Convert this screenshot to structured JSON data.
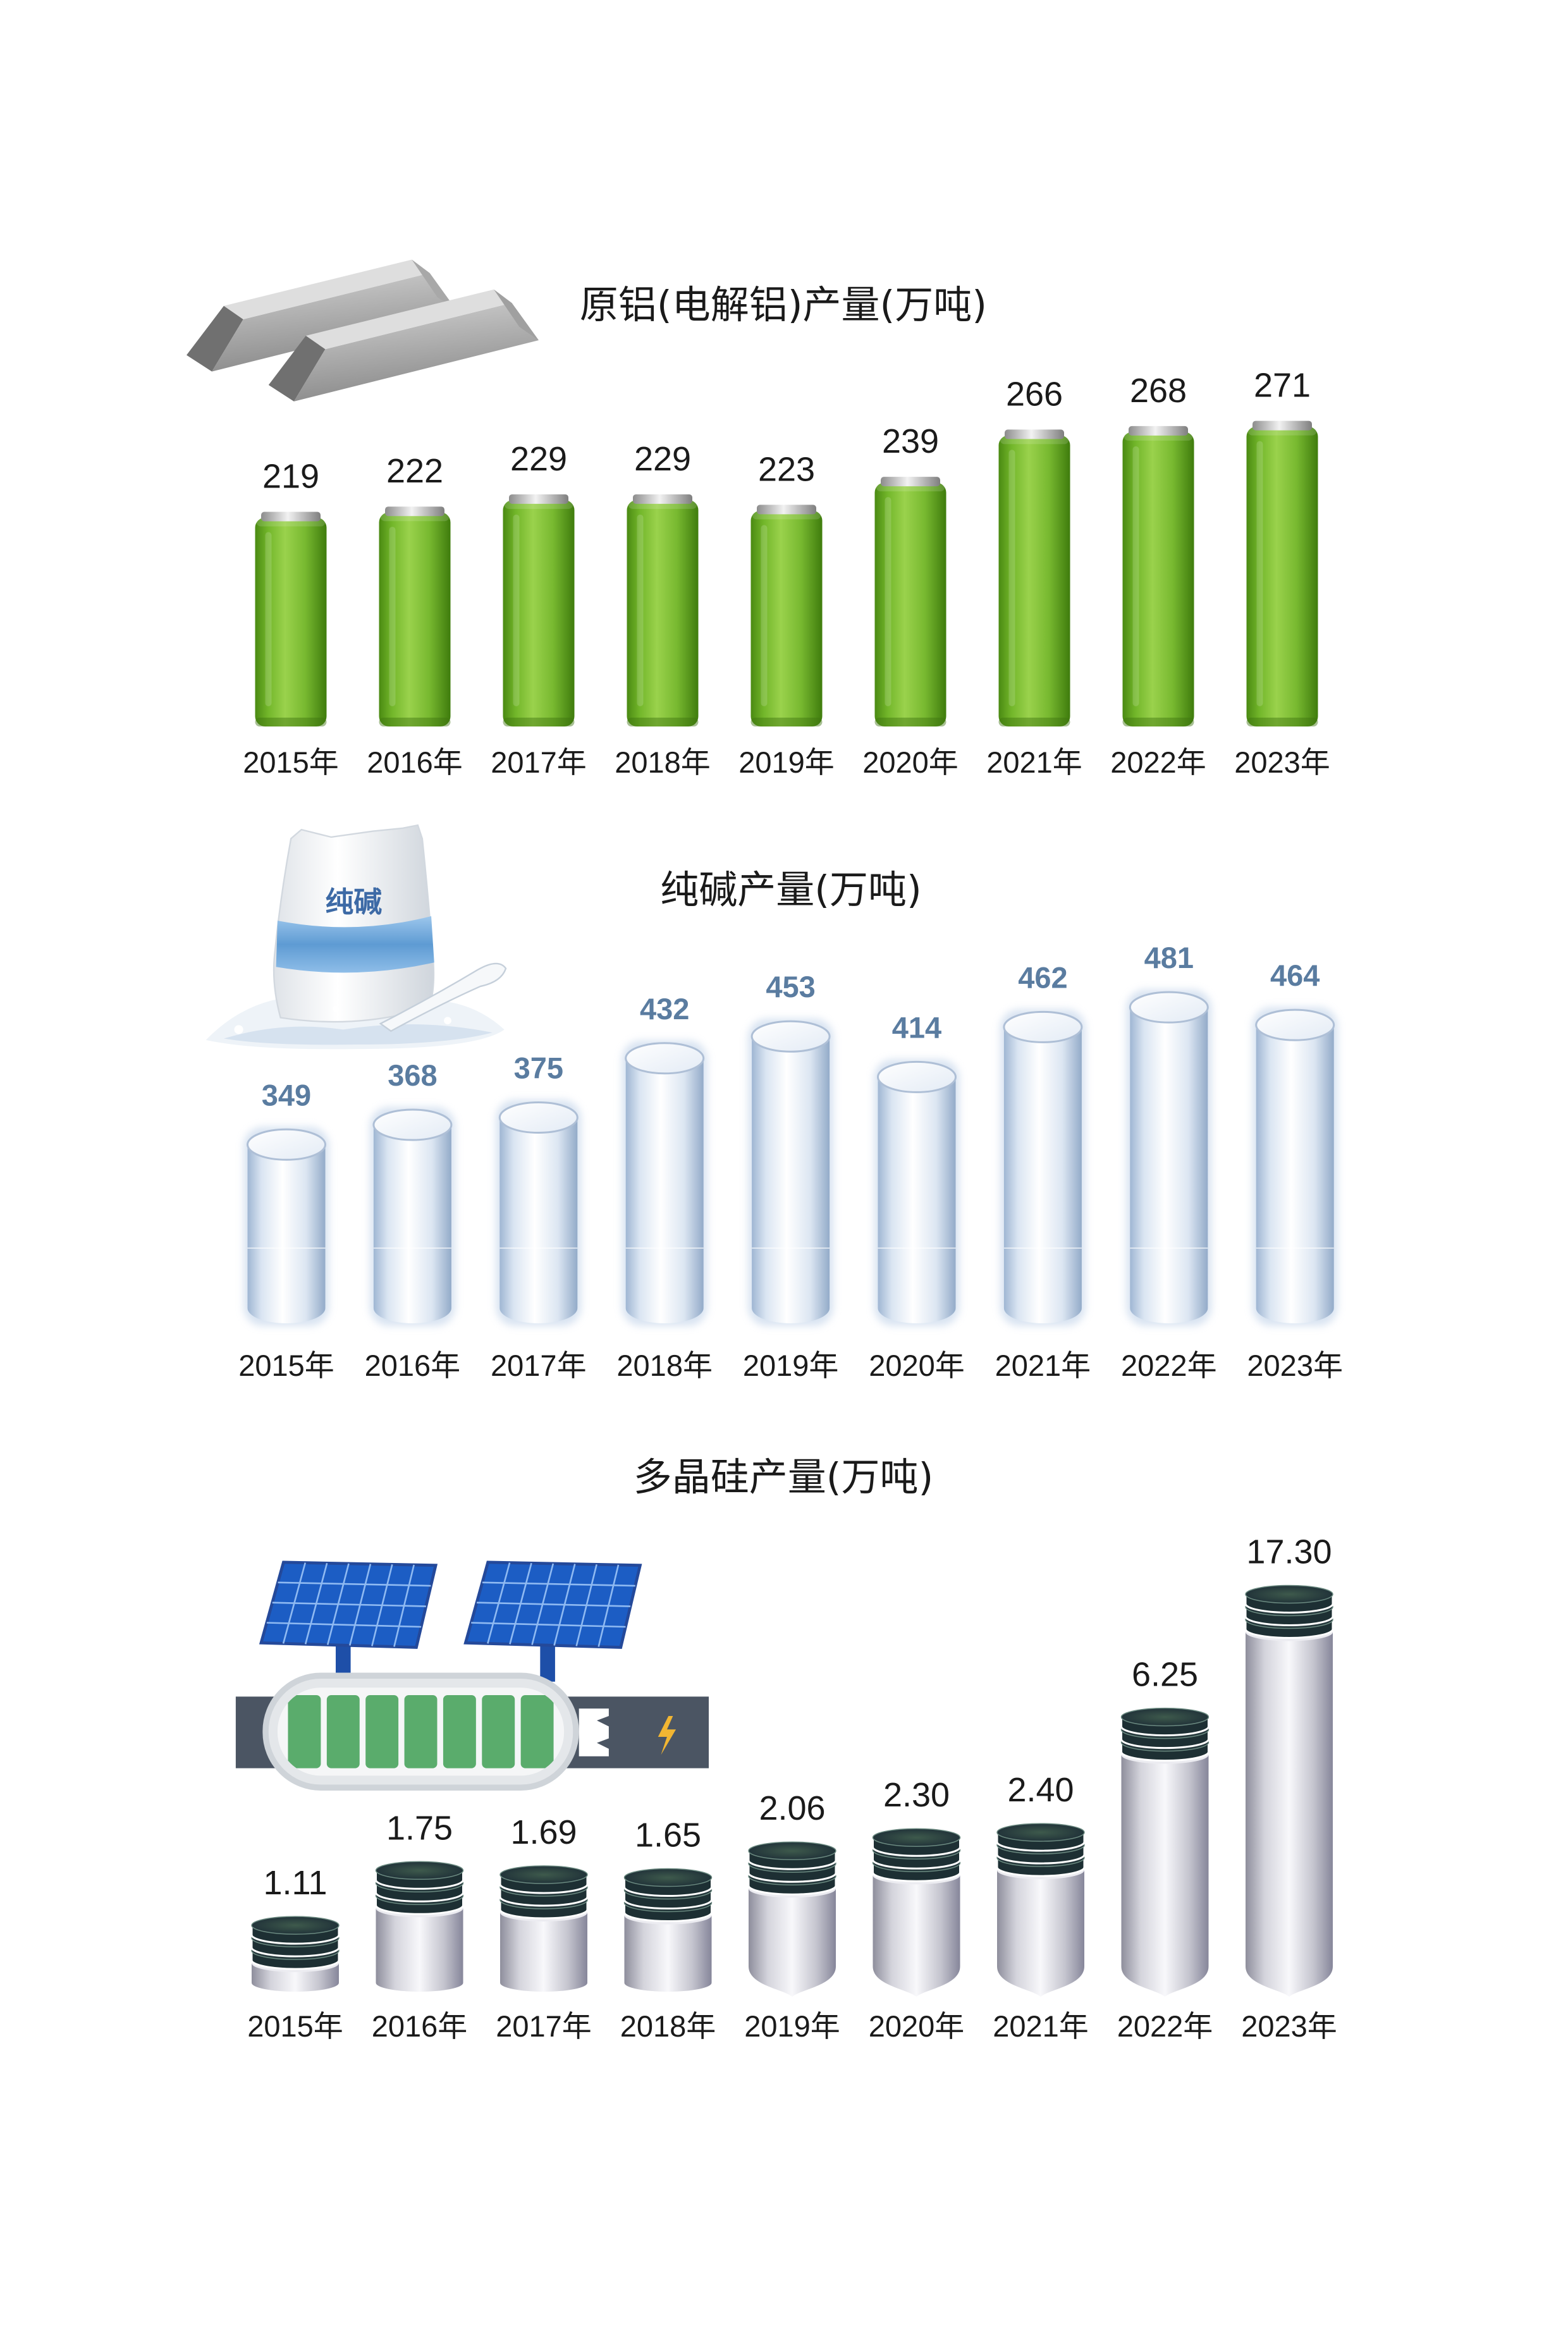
{
  "chart_data": [
    {
      "type": "bar",
      "title": "原铝(电解铝)产量(万吨)",
      "categories": [
        "2015年",
        "2016年",
        "2017年",
        "2018年",
        "2019年",
        "2020年",
        "2021年",
        "2022年",
        "2023年"
      ],
      "values": [
        219,
        222,
        229,
        229,
        223,
        239,
        266,
        268,
        271
      ],
      "colors": {
        "bar": "#7cc030",
        "label": "#1a1a1a"
      }
    },
    {
      "type": "bar",
      "title": "纯碱产量(万吨)",
      "categories": [
        "2015年",
        "2016年",
        "2017年",
        "2018年",
        "2019年",
        "2020年",
        "2021年",
        "2022年",
        "2023年"
      ],
      "values": [
        349,
        368,
        375,
        432,
        453,
        414,
        462,
        481,
        464
      ],
      "colors": {
        "bar": "#dfe8f3",
        "label": "#5a7ca0"
      }
    },
    {
      "type": "bar",
      "title": "多晶硅产量(万吨)",
      "categories": [
        "2015年",
        "2016年",
        "2017年",
        "2018年",
        "2019年",
        "2020年",
        "2021年",
        "2022年",
        "2023年"
      ],
      "values": [
        1.11,
        1.75,
        1.69,
        1.65,
        2.06,
        2.3,
        2.4,
        6.25,
        17.3
      ],
      "data_labels": [
        "1.11",
        "1.75",
        "1.69",
        "1.65",
        "2.06",
        "2.30",
        "2.40",
        "6.25",
        "17.30"
      ],
      "colors": {
        "bar": "#d8d8e0",
        "label": "#1a1a1a"
      }
    }
  ],
  "illustrations": {
    "aluminum": {
      "icon": "aluminum-ingots-icon"
    },
    "soda_ash": {
      "icon": "soda-ash-bag-icon",
      "bag_text": "纯碱"
    },
    "polysilicon": {
      "icon": "solar-panel-battery-icon"
    }
  }
}
